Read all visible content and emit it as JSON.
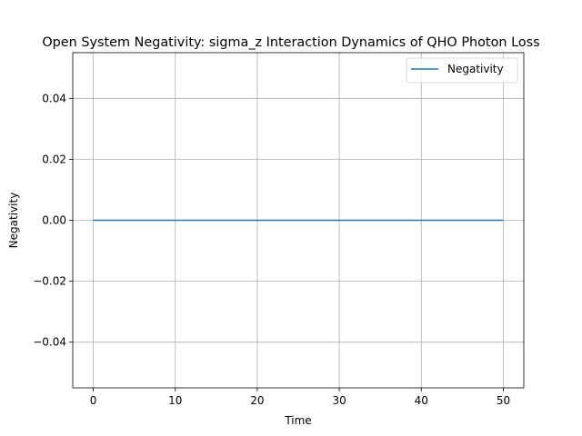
{
  "chart_data": {
    "type": "line",
    "title": "Open System Negativity: sigma_z Interaction Dynamics of QHO Photon Loss",
    "xlabel": "Time",
    "ylabel": "Negativity",
    "xlim": [
      -2.5,
      52.5
    ],
    "ylim": [
      -0.055,
      0.055
    ],
    "xticks": [
      0,
      10,
      20,
      30,
      40,
      50
    ],
    "xtick_labels": [
      "0",
      "10",
      "20",
      "30",
      "40",
      "50"
    ],
    "yticks": [
      -0.04,
      -0.02,
      0.0,
      0.02,
      0.04
    ],
    "ytick_labels": [
      "−0.04",
      "−0.02",
      "0.00",
      "0.02",
      "0.04"
    ],
    "grid": true,
    "legend_position": "upper right",
    "series": [
      {
        "name": "Negativity",
        "color": "#1f77b4",
        "x": [
          0,
          5,
          10,
          15,
          20,
          25,
          30,
          35,
          40,
          45,
          50
        ],
        "y": [
          0,
          0,
          0,
          0,
          0,
          0,
          0,
          0,
          0,
          0,
          0
        ]
      }
    ]
  }
}
